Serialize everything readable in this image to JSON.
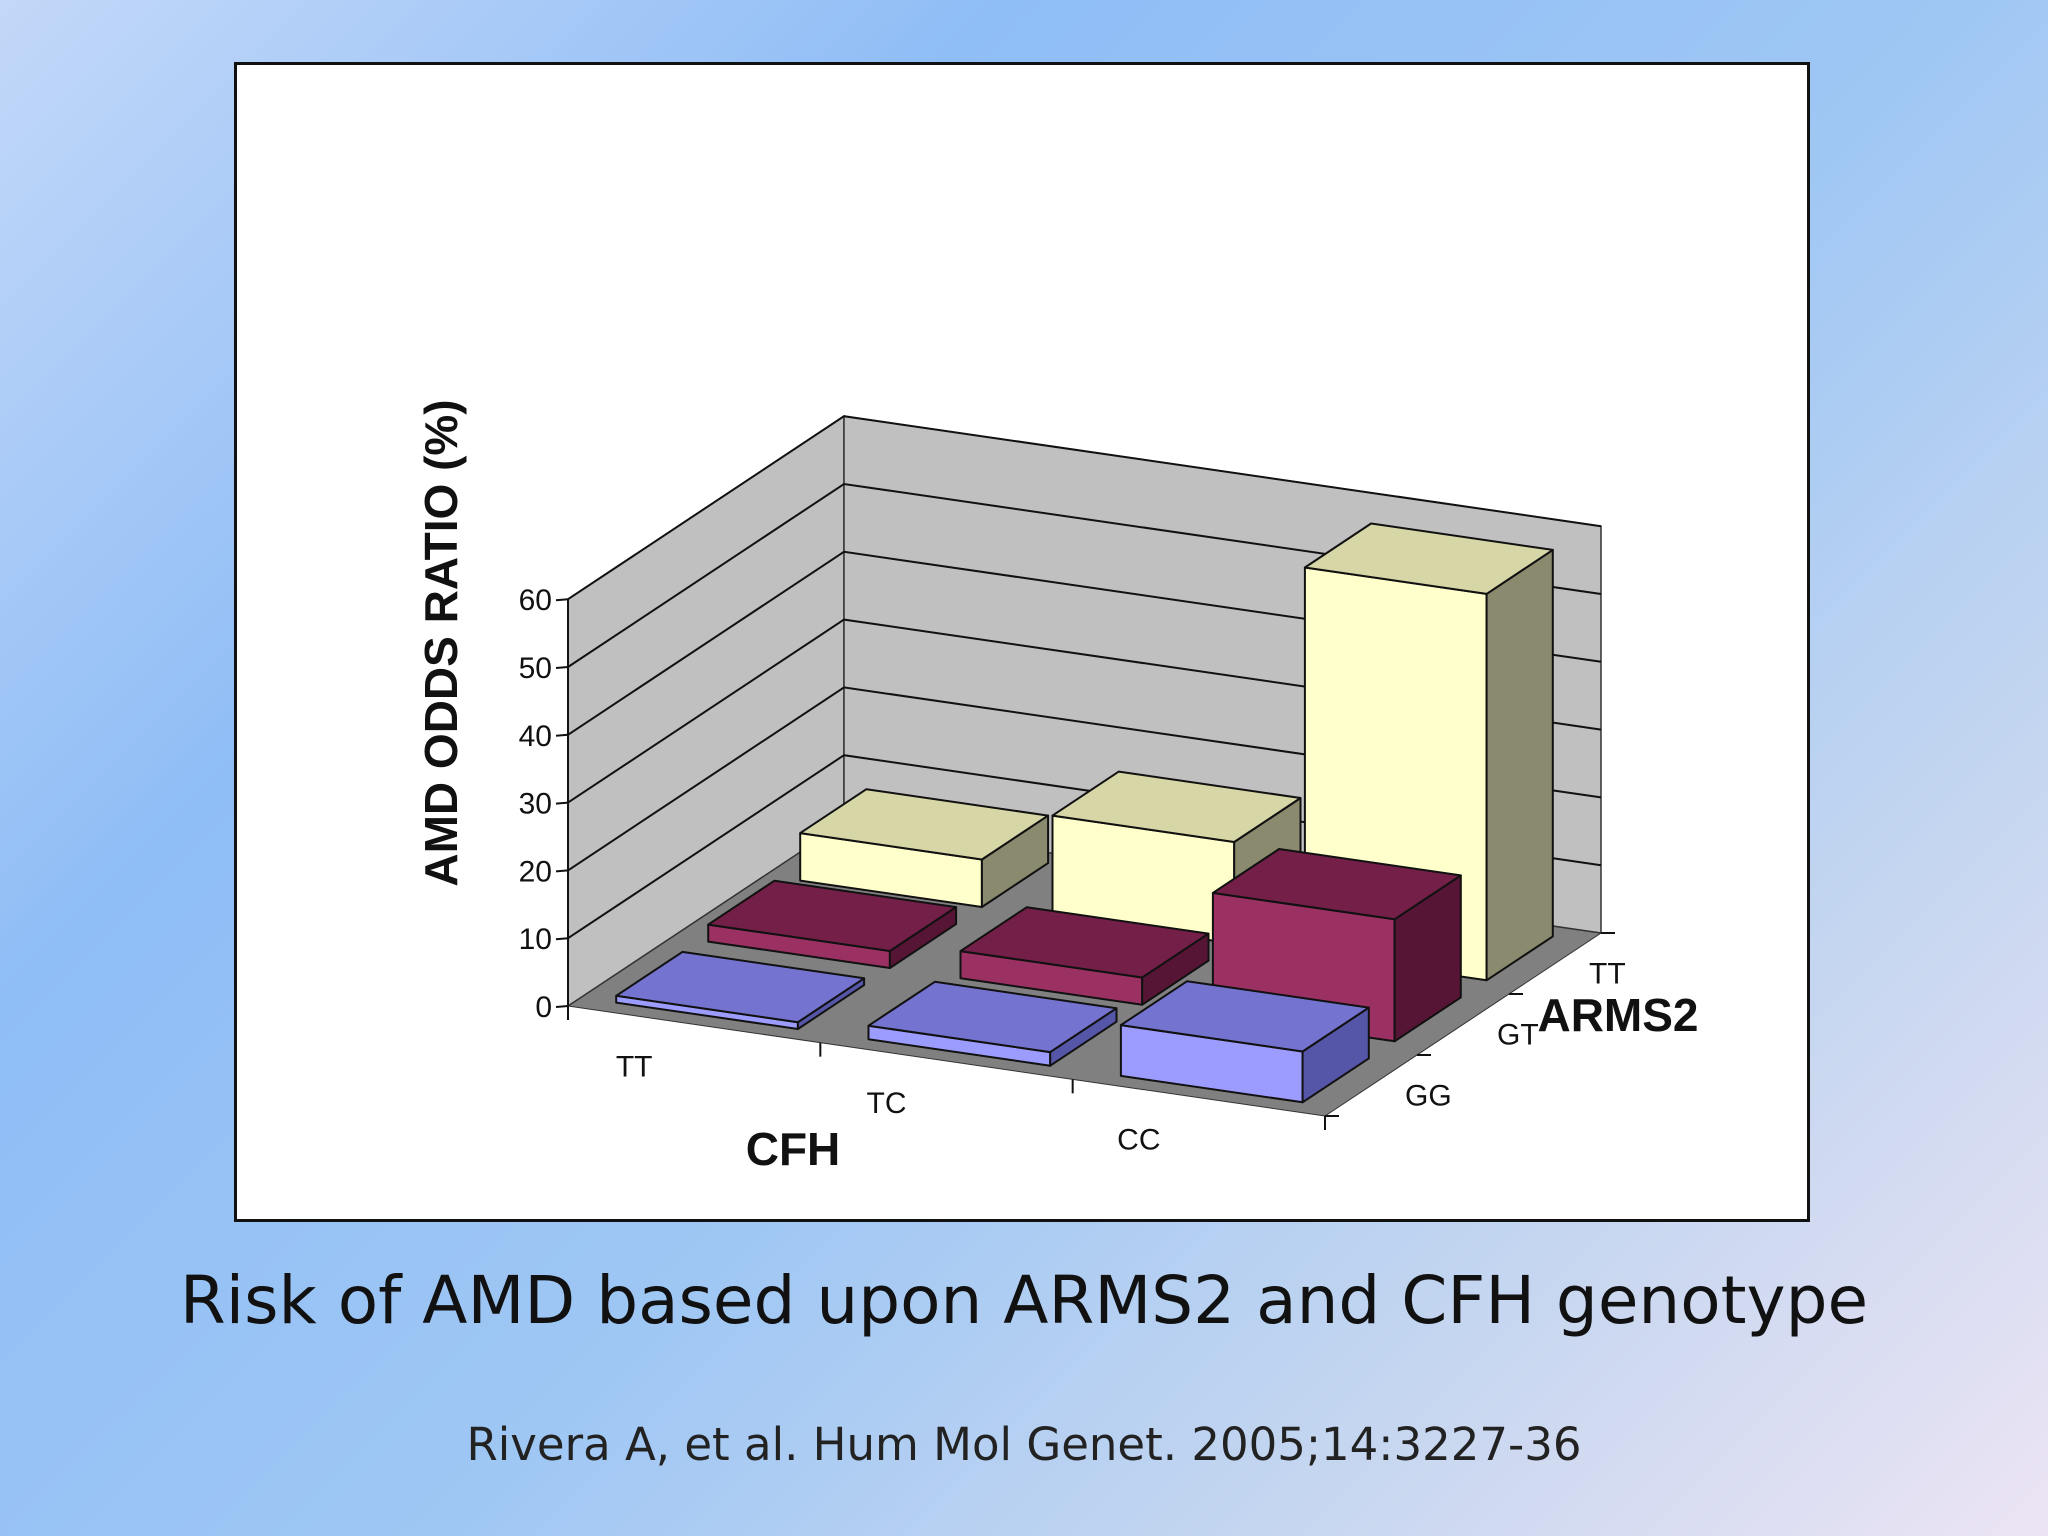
{
  "slide": {
    "title": "Risk of AMD based upon ARMS2 and CFH genotype",
    "citation": "Rivera A, et al. Hum Mol Genet. 2005;14:3227-36"
  },
  "chart_data": {
    "type": "bar",
    "title": "",
    "ylabel": "AMD ODDS RATIO (%)",
    "xlabel": "CFH",
    "zlabel": "ARMS2",
    "categories": [
      "TT",
      "TC",
      "CC"
    ],
    "depth_categories": [
      "GG",
      "GT",
      "TT"
    ],
    "ylim": [
      0,
      60
    ],
    "yticks": [
      0,
      10,
      20,
      30,
      40,
      50,
      60
    ],
    "series": [
      {
        "name": "GG",
        "values": [
          1,
          2,
          7.5
        ]
      },
      {
        "name": "GT",
        "values": [
          2.5,
          4,
          18
        ]
      },
      {
        "name": "TT",
        "values": [
          7,
          15,
          57
        ]
      }
    ],
    "colors": {
      "GG": {
        "front": "#9c9cff",
        "top": "#7474d0",
        "side": "#5656a8"
      },
      "GT": {
        "front": "#9b3062",
        "top": "#731f48",
        "side": "#571535"
      },
      "TT": {
        "front": "#ffffcc",
        "top": "#d6d6a6",
        "side": "#8a8a6e"
      },
      "wall": "#c0c0c0",
      "floor": "#808080",
      "grid": "#111111"
    },
    "grid": true
  }
}
